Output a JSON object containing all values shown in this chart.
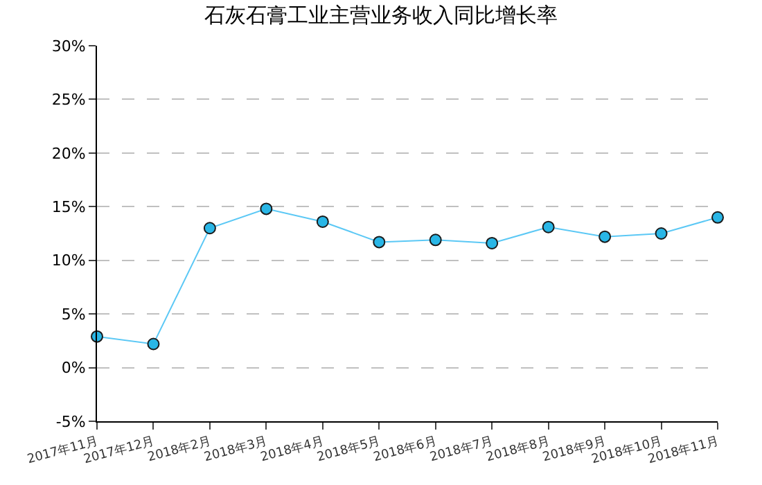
{
  "chart_data": {
    "type": "line",
    "title": "石灰石膏工业主营业务收入同比增长率",
    "categories": [
      "2017年11月",
      "2017年12月",
      "2018年2月",
      "2018年3月",
      "2018年4月",
      "2018年5月",
      "2018年6月",
      "2018年7月",
      "2018年8月",
      "2018年9月",
      "2018年10月",
      "2018年11月"
    ],
    "series": [
      {
        "color": "#5bc8f5",
        "values": [
          2.9,
          2.2,
          13.0,
          14.8,
          13.6,
          11.7,
          11.9,
          11.6,
          13.1,
          12.2,
          12.5,
          14.0
        ]
      }
    ],
    "ylim": [
      -5,
      30
    ],
    "yticks": [
      {
        "value": -5,
        "label": "-5%"
      },
      {
        "value": 0,
        "label": "0%"
      },
      {
        "value": 5,
        "label": "5%"
      },
      {
        "value": 10,
        "label": "10%"
      },
      {
        "value": 15,
        "label": "15%"
      },
      {
        "value": 20,
        "label": "20%"
      },
      {
        "value": 25,
        "label": "25%"
      },
      {
        "value": 30,
        "label": "30%"
      }
    ],
    "grid": "y",
    "marker": "circle",
    "line_style": "solid"
  }
}
